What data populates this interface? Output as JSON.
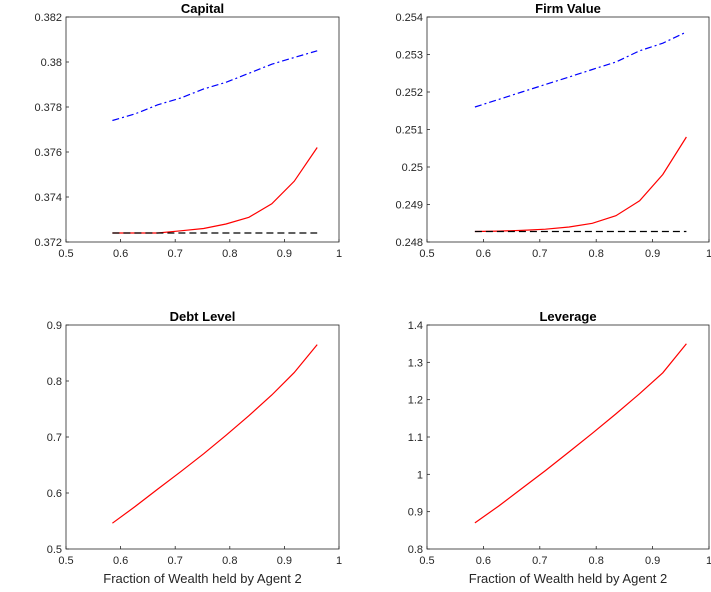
{
  "chart_data": [
    {
      "type": "line",
      "title": "Capital",
      "xlabel": "",
      "ylabel": "",
      "xlim": [
        0.5,
        1
      ],
      "ylim": [
        0.372,
        0.382
      ],
      "xticks": [
        "0.5",
        "0.6",
        "0.7",
        "0.8",
        "0.9",
        "1"
      ],
      "yticks": [
        "0.372",
        "0.374",
        "0.376",
        "0.378",
        "0.38",
        "0.382"
      ],
      "x": [
        0.585,
        0.627,
        0.668,
        0.71,
        0.752,
        0.793,
        0.835,
        0.877,
        0.918,
        0.96
      ],
      "series": [
        {
          "color": "#0000ff",
          "style": "dashdot",
          "values": [
            0.3774,
            0.3777,
            0.3781,
            0.3784,
            0.3788,
            0.3791,
            0.3795,
            0.3799,
            0.3802,
            0.3805
          ]
        },
        {
          "color": "#ff0000",
          "style": "solid",
          "values": [
            0.3724,
            0.3724,
            0.3724,
            0.3725,
            0.3726,
            0.3728,
            0.3731,
            0.3737,
            0.3747,
            0.3762
          ]
        },
        {
          "color": "#000000",
          "style": "dashed",
          "values": [
            0.3724,
            0.3724,
            0.3724,
            0.3724,
            0.3724,
            0.3724,
            0.3724,
            0.3724,
            0.3724,
            0.3724
          ]
        }
      ]
    },
    {
      "type": "line",
      "title": "Firm Value",
      "xlabel": "",
      "ylabel": "",
      "xlim": [
        0.5,
        1
      ],
      "ylim": [
        0.248,
        0.254
      ],
      "xticks": [
        "0.5",
        "0.6",
        "0.7",
        "0.8",
        "0.9",
        "1"
      ],
      "yticks": [
        "0.248",
        "0.249",
        "0.25",
        "0.251",
        "0.252",
        "0.253",
        "0.254"
      ],
      "x": [
        0.585,
        0.627,
        0.668,
        0.71,
        0.752,
        0.793,
        0.835,
        0.877,
        0.918,
        0.96
      ],
      "series": [
        {
          "color": "#0000ff",
          "style": "dashdot",
          "values": [
            0.2516,
            0.2518,
            0.252,
            0.2522,
            0.2524,
            0.2526,
            0.2528,
            0.2531,
            0.2533,
            0.2536
          ]
        },
        {
          "color": "#ff0000",
          "style": "solid",
          "values": [
            0.24828,
            0.24829,
            0.24831,
            0.24834,
            0.2484,
            0.2485,
            0.2487,
            0.2491,
            0.2498,
            0.2508
          ]
        },
        {
          "color": "#000000",
          "style": "dashed",
          "values": [
            0.24828,
            0.24828,
            0.24828,
            0.24828,
            0.24828,
            0.24828,
            0.24828,
            0.24828,
            0.24828,
            0.24828
          ]
        }
      ]
    },
    {
      "type": "line",
      "title": "Debt Level",
      "xlabel": "Fraction of Wealth held by Agent 2",
      "ylabel": "",
      "xlim": [
        0.5,
        1
      ],
      "ylim": [
        0.5,
        0.9
      ],
      "xticks": [
        "0.5",
        "0.6",
        "0.7",
        "0.8",
        "0.9",
        "1"
      ],
      "yticks": [
        "0.5",
        "0.6",
        "0.7",
        "0.8",
        "0.9"
      ],
      "x": [
        0.585,
        0.627,
        0.668,
        0.71,
        0.752,
        0.793,
        0.835,
        0.877,
        0.918,
        0.96
      ],
      "series": [
        {
          "color": "#ff0000",
          "style": "solid",
          "values": [
            0.546,
            0.576,
            0.607,
            0.638,
            0.67,
            0.703,
            0.738,
            0.775,
            0.815,
            0.865
          ]
        }
      ]
    },
    {
      "type": "line",
      "title": "Leverage",
      "xlabel": "Fraction of Wealth held by Agent 2",
      "ylabel": "",
      "xlim": [
        0.5,
        1
      ],
      "ylim": [
        0.8,
        1.4
      ],
      "xticks": [
        "0.5",
        "0.6",
        "0.7",
        "0.8",
        "0.9",
        "1"
      ],
      "yticks": [
        "0.8",
        "0.9",
        "1",
        "1.1",
        "1.2",
        "1.3",
        "1.4"
      ],
      "x": [
        0.585,
        0.627,
        0.668,
        0.71,
        0.752,
        0.793,
        0.835,
        0.877,
        0.918,
        0.96
      ],
      "series": [
        {
          "color": "#ff0000",
          "style": "solid",
          "values": [
            0.87,
            0.915,
            0.962,
            1.01,
            1.06,
            1.11,
            1.162,
            1.216,
            1.272,
            1.35
          ]
        }
      ]
    }
  ]
}
